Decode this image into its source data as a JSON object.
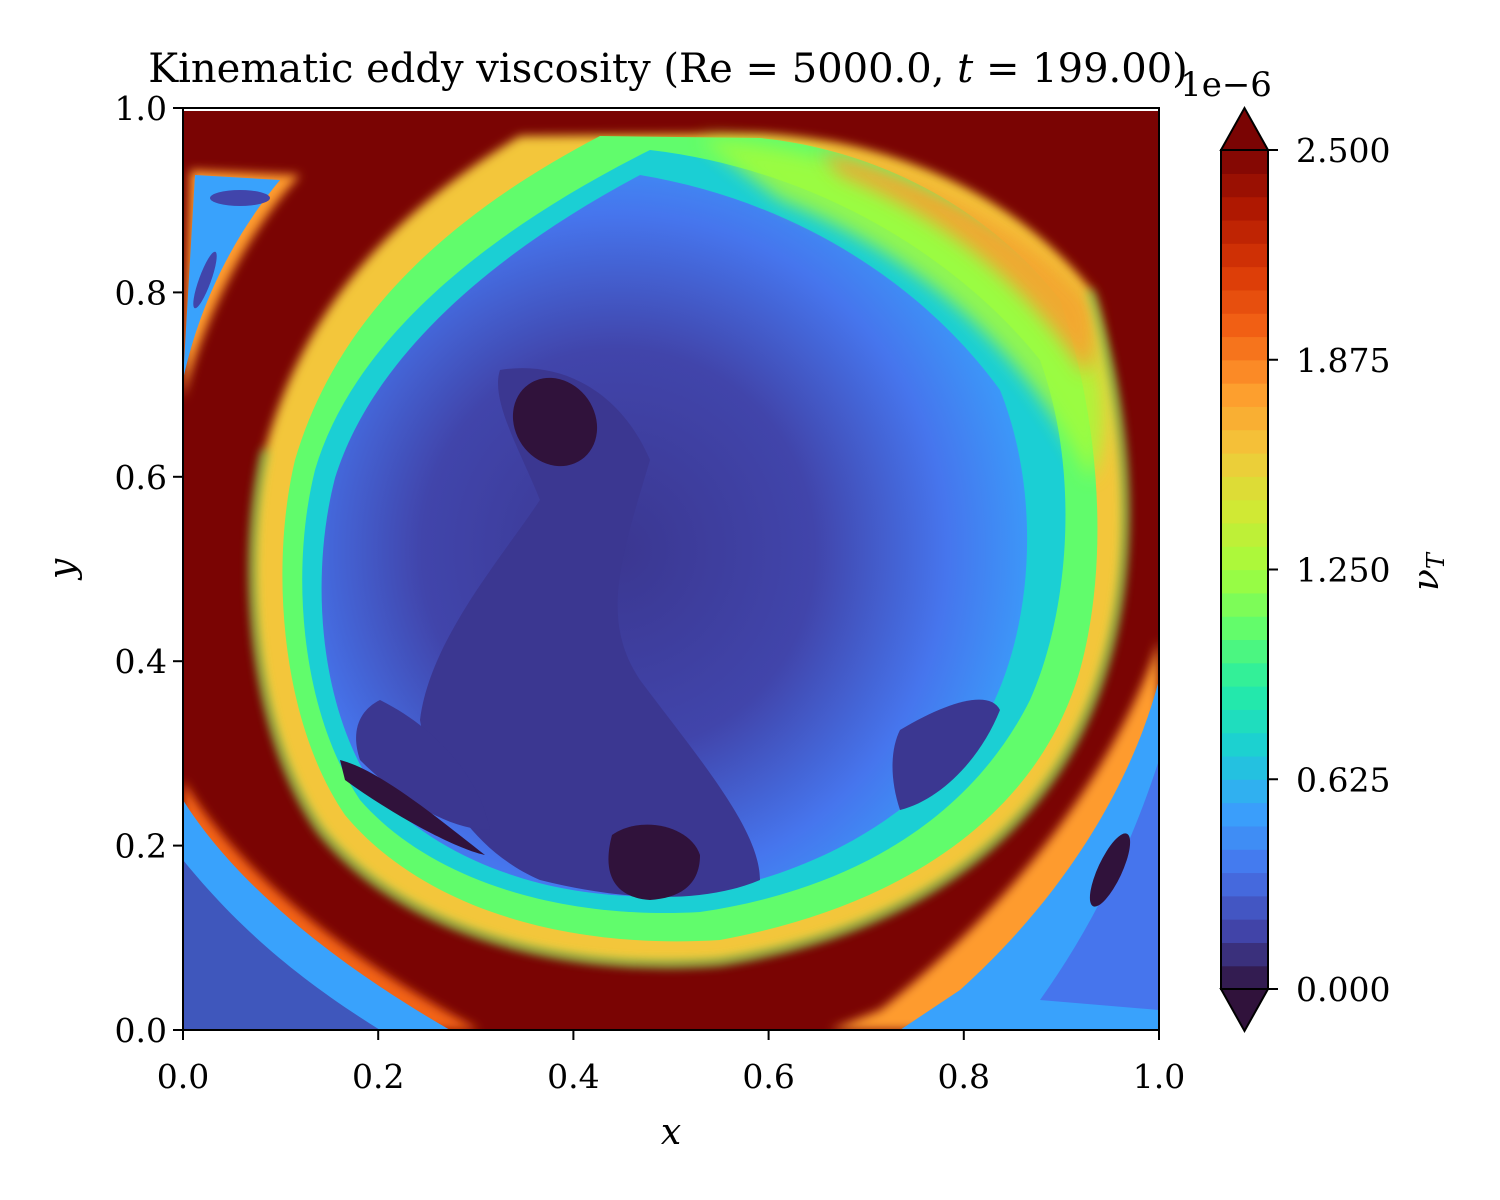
{
  "chart_data": {
    "type": "heatmap",
    "title": "Kinematic eddy viscosity (Re = 5000.0, t = 199.00)",
    "xlabel": "x",
    "ylabel": "y",
    "xlim": [
      0.0,
      1.0
    ],
    "ylim": [
      0.0,
      1.0
    ],
    "x_ticks": [
      "0.0",
      "0.2",
      "0.4",
      "0.6",
      "0.8",
      "1.0"
    ],
    "y_ticks": [
      "0.0",
      "0.2",
      "0.4",
      "0.6",
      "0.8",
      "1.0"
    ],
    "grid": false,
    "colorbar": {
      "label": "ν_T",
      "multiplier": "1e−6",
      "range": [
        0.0,
        2.5e-06
      ],
      "ticks": [
        "0.000",
        "0.625",
        "1.250",
        "1.875",
        "2.500"
      ],
      "extend": "both",
      "colormap": "turbo",
      "colors": [
        "#30123b",
        "#4145ab",
        "#4675ed",
        "#39a2fc",
        "#1bcfd4",
        "#24eca6",
        "#61fc6c",
        "#a4fc3b",
        "#d1e834",
        "#f3c63a",
        "#fe9b2d",
        "#f36315",
        "#d93806",
        "#b11901",
        "#7a0403"
      ]
    },
    "regions": [
      {
        "description": "saturated band near walls",
        "level": 2.5e-06
      },
      {
        "description": "circular vortex interior",
        "level": 2e-07
      },
      {
        "description": "vortex core minima",
        "points": [
          [
            0.38,
            0.65
          ],
          [
            0.48,
            0.19
          ]
        ],
        "level": 5e-08
      },
      {
        "description": "upper-right arc of vortex",
        "level": 1.5e-06
      }
    ]
  }
}
